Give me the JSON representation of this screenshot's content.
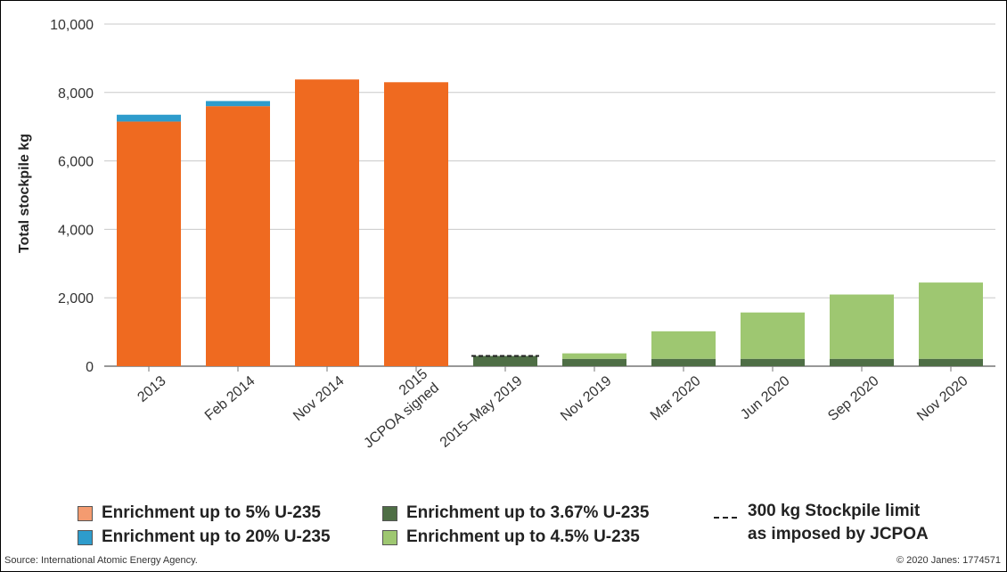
{
  "chart_data": {
    "type": "bar",
    "stacked": true,
    "categories": [
      "2013",
      "Feb 2014",
      "Nov 2014",
      "2015 JCPOA signed",
      "2015–May 2019",
      "Nov 2019",
      "Mar 2020",
      "Jun 2020",
      "Sep 2020",
      "Nov 2020"
    ],
    "category_lines": [
      [
        "2013"
      ],
      [
        "Feb 2014"
      ],
      [
        "Nov 2014"
      ],
      [
        "2015",
        "JCPOA signed"
      ],
      [
        "2015–May 2019"
      ],
      [
        "Nov 2019"
      ],
      [
        "Mar 2020"
      ],
      [
        "Jun 2020"
      ],
      [
        "Sep 2020"
      ],
      [
        "Nov 2020"
      ]
    ],
    "series": [
      {
        "name": "Enrichment up to 5% U-235",
        "color": "#ef6a20",
        "values": [
          7150,
          7600,
          8380,
          8300,
          0,
          0,
          0,
          0,
          0,
          0
        ]
      },
      {
        "name": "Enrichment up to 20% U-235",
        "color": "#2e9ccc",
        "values": [
          200,
          150,
          0,
          0,
          0,
          0,
          0,
          0,
          0,
          0
        ]
      },
      {
        "name": "Enrichment up to 3.67% U-235",
        "color": "#4e6e45",
        "values": [
          0,
          0,
          0,
          0,
          300,
          215,
          215,
          215,
          215,
          215
        ]
      },
      {
        "name": "Enrichment up to 4.5% U-235",
        "color": "#9ec771",
        "values": [
          0,
          0,
          0,
          0,
          0,
          160,
          805,
          1355,
          1880,
          2230
        ]
      }
    ],
    "limit": {
      "value": 300,
      "category_index": 4,
      "label_line1": "300 kg Stockpile limit",
      "label_line2": "as imposed by JCPOA"
    },
    "ylabel": "Total stockpile kg",
    "ylim": [
      0,
      10000
    ],
    "yticks": [
      0,
      2000,
      4000,
      6000,
      8000,
      10000
    ],
    "ytick_labels": [
      "0",
      "2,000",
      "4,000",
      "6,000",
      "8,000",
      "10,000"
    ],
    "grid": true,
    "legend_position": "bottom"
  },
  "footer": {
    "source": "Source: International Atomic Energy Agency.",
    "copyright": "© 2020 Janes: 1774571"
  }
}
